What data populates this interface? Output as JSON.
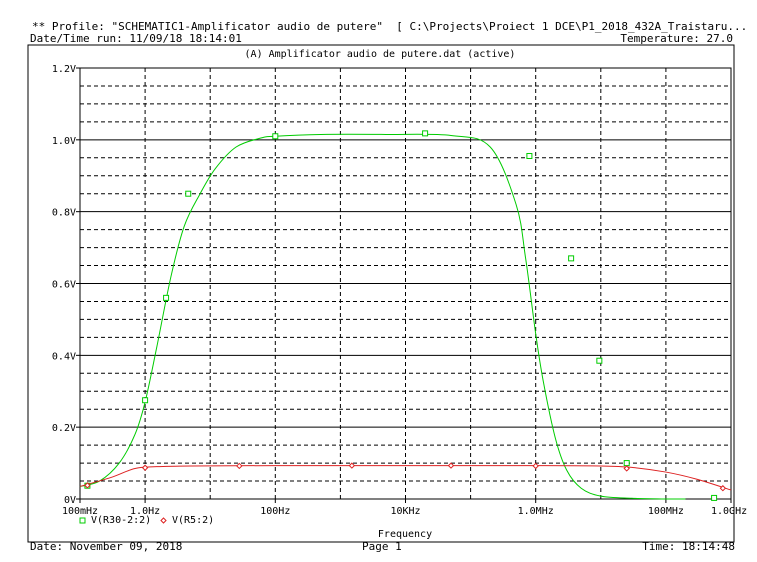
{
  "header": {
    "profile_line": "** Profile: \"SCHEMATIC1-Amplificator audio de putere\"  [ C:\\Projects\\Proiect 1 DCE\\P1_2018_432A_Traistaru...",
    "datetime_run": "Date/Time run: 11/09/18 18:14:01",
    "temperature": "Temperature: 27.0"
  },
  "footer": {
    "date": "Date: November 09, 2018",
    "page": "Page 1",
    "time": "Time: 18:14:48"
  },
  "colors": {
    "grid": "#000000",
    "series_green": "#00cc00",
    "series_red": "#dd2222"
  },
  "chart_data": {
    "type": "line",
    "title": "(A) Amplificator audio de putere.dat (active)",
    "xlabel": "Frequency",
    "ylabel": "",
    "x_scale": "log",
    "xlim": [
      0.1,
      1000000000
    ],
    "ylim": [
      0,
      1.2
    ],
    "grid": true,
    "x_ticks": [
      {
        "value": 0.1,
        "label": "100mHz"
      },
      {
        "value": 1,
        "label": "1.0Hz"
      },
      {
        "value": 100,
        "label": "100Hz"
      },
      {
        "value": 10000,
        "label": "10KHz"
      },
      {
        "value": 1000000,
        "label": "1.0MHz"
      },
      {
        "value": 100000000,
        "label": "100MHz"
      },
      {
        "value": 1000000000,
        "label": "1.0GHz"
      }
    ],
    "y_ticks": [
      {
        "value": 0,
        "label": "0V"
      },
      {
        "value": 0.2,
        "label": "0.2V"
      },
      {
        "value": 0.4,
        "label": "0.4V"
      },
      {
        "value": 0.6,
        "label": "0.6V"
      },
      {
        "value": 0.8,
        "label": "0.8V"
      },
      {
        "value": 1.0,
        "label": "1.0V"
      },
      {
        "value": 1.2,
        "label": "1.2V"
      }
    ],
    "legend_placement": "bottom-left",
    "series": [
      {
        "name": "V(R30-2:2)",
        "color": "#00cc00",
        "marker": "square",
        "x": [
          0.1,
          0.2,
          0.4,
          0.7,
          1,
          1.5,
          2.5,
          4,
          7,
          12,
          25,
          60,
          100,
          500,
          5000,
          50000,
          200000,
          500000,
          700000,
          1000000,
          1300000,
          2000000,
          3000000,
          5000000,
          10000000,
          30000000,
          100000000,
          200000000
        ],
        "y": [
          0.035,
          0.05,
          0.1,
          0.18,
          0.27,
          0.42,
          0.62,
          0.76,
          0.85,
          0.92,
          0.98,
          1.005,
          1.01,
          1.015,
          1.015,
          1.012,
          0.98,
          0.82,
          0.67,
          0.46,
          0.33,
          0.17,
          0.08,
          0.03,
          0.008,
          0.002,
          0.0,
          0.0
        ],
        "markers_x": [
          0.13,
          1,
          2.1,
          4.6,
          100,
          20000,
          800000,
          3500000,
          9500000,
          25000000,
          550000000
        ],
        "markers_y": [
          0.037,
          0.275,
          0.56,
          0.85,
          1.01,
          1.018,
          0.955,
          0.67,
          0.385,
          0.1,
          0.003
        ]
      },
      {
        "name": "V(R5:2)",
        "color": "#dd2222",
        "marker": "diamond",
        "x": [
          0.1,
          0.3,
          0.7,
          1.5,
          5,
          100,
          10000,
          1000000,
          10000000,
          30000000,
          100000000,
          300000000,
          1000000000
        ],
        "y": [
          0.035,
          0.06,
          0.085,
          0.09,
          0.092,
          0.093,
          0.093,
          0.093,
          0.092,
          0.088,
          0.075,
          0.055,
          0.025
        ],
        "markers_x": [
          0.13,
          1,
          28,
          1500,
          50000,
          1000000,
          25000000,
          750000000
        ],
        "markers_y": [
          0.038,
          0.087,
          0.092,
          0.093,
          0.093,
          0.092,
          0.085,
          0.03
        ]
      }
    ]
  }
}
